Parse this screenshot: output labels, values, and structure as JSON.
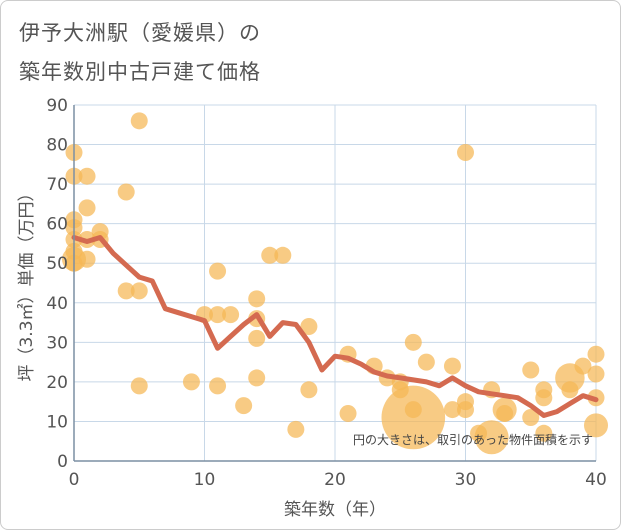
{
  "chart_data": {
    "type": "scatter",
    "title_line1": "伊予大洲駅（愛媛県）の",
    "title_line2": "築年数別中古戸建て価格",
    "xlabel": "築年数（年）",
    "ylabel": "坪（3.3㎡）単価（万円）",
    "xlim": [
      0,
      40
    ],
    "ylim": [
      0,
      90
    ],
    "xticks": [
      "0",
      "10",
      "20",
      "30",
      "40"
    ],
    "yticks": [
      "0",
      "10",
      "20",
      "30",
      "40",
      "50",
      "60",
      "70",
      "80",
      "90"
    ],
    "note": "円の大きさは、取引のあった物件面積を示す",
    "colors": {
      "bubble": "#f5b754",
      "line": "#d46a50",
      "grid": "#c8d8e8",
      "axis": "#7b8fa3"
    },
    "bubbles": [
      {
        "x": 0,
        "y": 78,
        "s": 1
      },
      {
        "x": 0,
        "y": 72,
        "s": 1
      },
      {
        "x": 0,
        "y": 61,
        "s": 1
      },
      {
        "x": 0,
        "y": 59,
        "s": 1
      },
      {
        "x": 0,
        "y": 56,
        "s": 1
      },
      {
        "x": 0,
        "y": 53,
        "s": 1
      },
      {
        "x": 0,
        "y": 51,
        "s": 2
      },
      {
        "x": 0,
        "y": 50,
        "s": 1
      },
      {
        "x": 1,
        "y": 72,
        "s": 1
      },
      {
        "x": 1,
        "y": 64,
        "s": 1
      },
      {
        "x": 1,
        "y": 56,
        "s": 1
      },
      {
        "x": 1,
        "y": 51,
        "s": 1
      },
      {
        "x": 2,
        "y": 58,
        "s": 1
      },
      {
        "x": 2,
        "y": 56,
        "s": 1
      },
      {
        "x": 4,
        "y": 68,
        "s": 1
      },
      {
        "x": 4,
        "y": 43,
        "s": 1
      },
      {
        "x": 5,
        "y": 86,
        "s": 1
      },
      {
        "x": 5,
        "y": 43,
        "s": 1
      },
      {
        "x": 5,
        "y": 19,
        "s": 1
      },
      {
        "x": 9,
        "y": 20,
        "s": 1
      },
      {
        "x": 10,
        "y": 37,
        "s": 1
      },
      {
        "x": 11,
        "y": 48,
        "s": 1
      },
      {
        "x": 11,
        "y": 37,
        "s": 1
      },
      {
        "x": 11,
        "y": 19,
        "s": 1
      },
      {
        "x": 12,
        "y": 37,
        "s": 1
      },
      {
        "x": 13,
        "y": 14,
        "s": 1
      },
      {
        "x": 14,
        "y": 41,
        "s": 1
      },
      {
        "x": 14,
        "y": 36,
        "s": 1
      },
      {
        "x": 14,
        "y": 31,
        "s": 1
      },
      {
        "x": 14,
        "y": 21,
        "s": 1
      },
      {
        "x": 15,
        "y": 52,
        "s": 1
      },
      {
        "x": 16,
        "y": 52,
        "s": 1
      },
      {
        "x": 17,
        "y": 8,
        "s": 1
      },
      {
        "x": 18,
        "y": 34,
        "s": 1
      },
      {
        "x": 18,
        "y": 18,
        "s": 1
      },
      {
        "x": 21,
        "y": 27,
        "s": 1
      },
      {
        "x": 21,
        "y": 12,
        "s": 1
      },
      {
        "x": 23,
        "y": 24,
        "s": 1
      },
      {
        "x": 24,
        "y": 21,
        "s": 1
      },
      {
        "x": 25,
        "y": 20,
        "s": 1
      },
      {
        "x": 25,
        "y": 18,
        "s": 1
      },
      {
        "x": 26,
        "y": 11,
        "s": 14
      },
      {
        "x": 26,
        "y": 30,
        "s": 1
      },
      {
        "x": 26,
        "y": 13,
        "s": 1
      },
      {
        "x": 27,
        "y": 25,
        "s": 1
      },
      {
        "x": 29,
        "y": 24,
        "s": 1
      },
      {
        "x": 29,
        "y": 13,
        "s": 1
      },
      {
        "x": 30,
        "y": 78,
        "s": 1
      },
      {
        "x": 30,
        "y": 15,
        "s": 1
      },
      {
        "x": 30,
        "y": 13,
        "s": 1
      },
      {
        "x": 31,
        "y": 7,
        "s": 1
      },
      {
        "x": 32,
        "y": 18,
        "s": 1
      },
      {
        "x": 32,
        "y": 6,
        "s": 4
      },
      {
        "x": 33,
        "y": 13,
        "s": 2
      },
      {
        "x": 33,
        "y": 12,
        "s": 1
      },
      {
        "x": 35,
        "y": 23,
        "s": 1
      },
      {
        "x": 35,
        "y": 11,
        "s": 1
      },
      {
        "x": 36,
        "y": 18,
        "s": 1
      },
      {
        "x": 36,
        "y": 16,
        "s": 1
      },
      {
        "x": 36,
        "y": 7,
        "s": 1
      },
      {
        "x": 38,
        "y": 21,
        "s": 3
      },
      {
        "x": 38,
        "y": 18,
        "s": 1
      },
      {
        "x": 39,
        "y": 24,
        "s": 1
      },
      {
        "x": 40,
        "y": 27,
        "s": 1
      },
      {
        "x": 40,
        "y": 22,
        "s": 1
      },
      {
        "x": 40,
        "y": 16,
        "s": 1
      },
      {
        "x": 40,
        "y": 9,
        "s": 2
      }
    ],
    "line": {
      "x": [
        0,
        1,
        2,
        3,
        4,
        5,
        6,
        7,
        8,
        9,
        10,
        11,
        12,
        13,
        14,
        15,
        16,
        17,
        18,
        19,
        20,
        21,
        22,
        23,
        24,
        25,
        26,
        27,
        28,
        29,
        30,
        31,
        32,
        33,
        34,
        35,
        36,
        37,
        38,
        39,
        40
      ],
      "y": [
        56.5,
        55.5,
        56.5,
        52.5,
        49.5,
        46.5,
        45.5,
        38.5,
        37.5,
        36.5,
        35.5,
        28.5,
        31.5,
        34.5,
        37,
        31.5,
        35,
        34.5,
        30,
        23,
        26.5,
        26,
        24.5,
        22.5,
        21.5,
        21,
        20.5,
        20,
        19,
        21,
        19,
        17.5,
        17,
        16.5,
        16,
        14,
        11.5,
        12.5,
        14.5,
        16.5,
        15.5
      ]
    }
  }
}
